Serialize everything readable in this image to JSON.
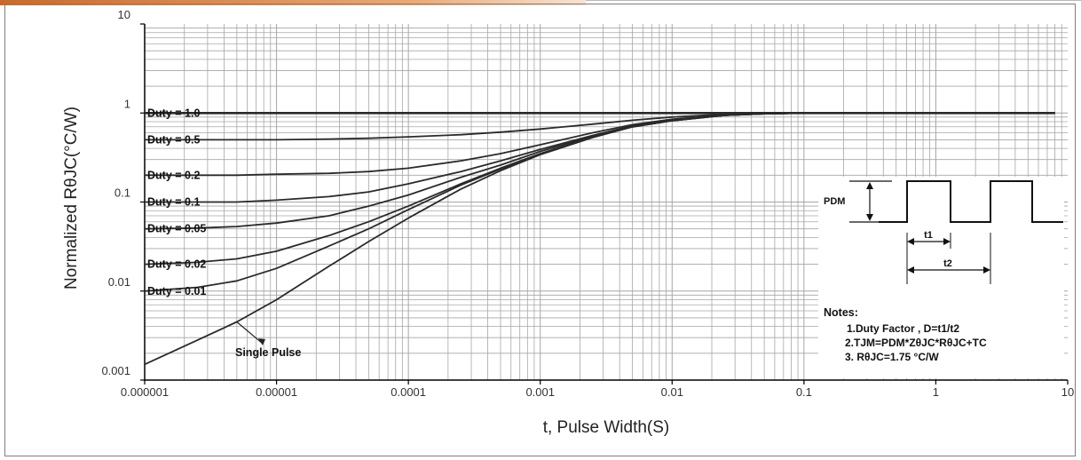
{
  "chart_data": {
    "type": "line",
    "xlabel": "t, Pulse Width(S)",
    "ylabel": "Normalized RθJC(°C/W)",
    "xscale": "log",
    "yscale": "log",
    "xlim": [
      1e-06,
      10
    ],
    "ylim": [
      0.001,
      10
    ],
    "grid": true,
    "x_tick_labels": [
      "0.000001",
      "0.00001",
      "0.0001",
      "0.001",
      "0.01",
      "0.1",
      "1",
      "10"
    ],
    "y_tick_labels": [
      "0.001",
      "0.01",
      "0.1",
      "1",
      "10"
    ],
    "x": [
      1e-06,
      2.5e-06,
      5e-06,
      1e-05,
      2.5e-05,
      5e-05,
      0.0001,
      0.00025,
      0.0005,
      0.001,
      0.0025,
      0.005,
      0.01,
      0.025,
      0.05,
      0.1,
      0.25,
      1,
      8
    ],
    "series": [
      {
        "name": "Duty = 1.0",
        "values": [
          1,
          1,
          1,
          1,
          1,
          1,
          1,
          1,
          1,
          1,
          1,
          1,
          1,
          1,
          1,
          1,
          1,
          1,
          1
        ]
      },
      {
        "name": "Duty = 0.5",
        "values": [
          0.5,
          0.5,
          0.5,
          0.5,
          0.51,
          0.52,
          0.54,
          0.57,
          0.61,
          0.66,
          0.75,
          0.83,
          0.9,
          0.97,
          0.99,
          1,
          1,
          1,
          1
        ]
      },
      {
        "name": "Duty = 0.2",
        "values": [
          0.2,
          0.2,
          0.2,
          0.205,
          0.21,
          0.22,
          0.24,
          0.29,
          0.35,
          0.44,
          0.6,
          0.74,
          0.85,
          0.95,
          0.98,
          1,
          1,
          1,
          1
        ]
      },
      {
        "name": "Duty = 0.1",
        "values": [
          0.1,
          0.1,
          0.1,
          0.105,
          0.115,
          0.13,
          0.16,
          0.22,
          0.29,
          0.39,
          0.56,
          0.72,
          0.83,
          0.94,
          0.98,
          1,
          1,
          1,
          1
        ]
      },
      {
        "name": "Duty = 0.05",
        "values": [
          0.05,
          0.051,
          0.053,
          0.058,
          0.07,
          0.09,
          0.12,
          0.19,
          0.26,
          0.37,
          0.55,
          0.71,
          0.83,
          0.94,
          0.98,
          1,
          1,
          1,
          1
        ]
      },
      {
        "name": "Duty = 0.02",
        "values": [
          0.02,
          0.021,
          0.023,
          0.028,
          0.042,
          0.06,
          0.09,
          0.16,
          0.24,
          0.35,
          0.54,
          0.7,
          0.82,
          0.94,
          0.98,
          1,
          1,
          1,
          1
        ]
      },
      {
        "name": "Duty = 0.01",
        "values": [
          0.01,
          0.011,
          0.013,
          0.018,
          0.032,
          0.05,
          0.082,
          0.155,
          0.235,
          0.345,
          0.535,
          0.7,
          0.82,
          0.94,
          0.98,
          1,
          1,
          1,
          1
        ]
      },
      {
        "name": "Single Pulse",
        "values": [
          0.0015,
          0.0028,
          0.0045,
          0.008,
          0.019,
          0.036,
          0.066,
          0.14,
          0.225,
          0.34,
          0.53,
          0.7,
          0.82,
          0.94,
          0.98,
          1,
          1,
          1,
          1
        ]
      }
    ],
    "inset": {
      "pdm_label": "PDM",
      "t1_label": "t1",
      "t2_label": "t2",
      "notes_title": "Notes:",
      "notes": [
        "1.Duty Factor , D=t1/t2",
        "2.TJM=PDM*ZθJC*RθJC+TC",
        "3. RθJC=1.75 °C/W"
      ]
    },
    "colors": {
      "curve": "#2a2a2a",
      "grid": "#a6a6a6",
      "axis": "#000000"
    }
  }
}
